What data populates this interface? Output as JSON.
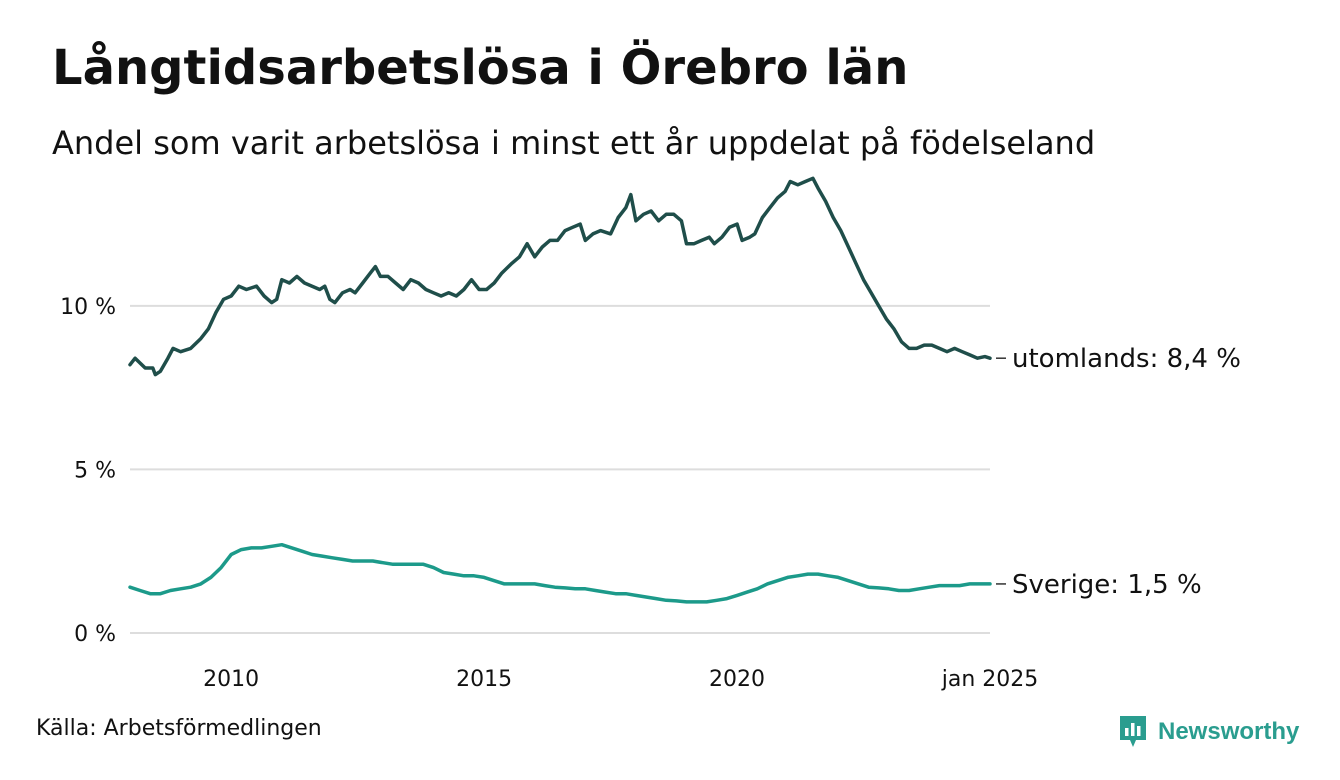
{
  "title": "Långtidsarbetslösa i Örebro län",
  "subtitle": "Andel som varit arbetslösa i minst ett år uppdelat på födelseland",
  "source": "Källa: Arbetsförmedlingen",
  "brand": "Newsworthy",
  "colors": {
    "utomlands": "#1f4e4a",
    "sverige": "#1c9a8a",
    "grid": "#dddddd",
    "brand": "#2a9d8f"
  },
  "chart_data": {
    "type": "line",
    "ylim": [
      0,
      14
    ],
    "yticks": [
      {
        "value": 0,
        "label": "0 %"
      },
      {
        "value": 5,
        "label": "5 %"
      },
      {
        "value": 10,
        "label": "10 %"
      }
    ],
    "xlim": [
      2008.0,
      2025.0
    ],
    "xticks": [
      {
        "value": 2010,
        "label": "2010"
      },
      {
        "value": 2015,
        "label": "2015"
      },
      {
        "value": 2020,
        "label": "2020"
      },
      {
        "value": 2025.0,
        "label": "jan 2025"
      }
    ],
    "grid": true,
    "series": [
      {
        "key": "utomlands",
        "end_label": "utomlands: 8,4 %",
        "color": "#1f4e4a",
        "points": [
          [
            2008.0,
            8.2
          ],
          [
            2008.1,
            8.4
          ],
          [
            2008.3,
            8.1
          ],
          [
            2008.45,
            8.1
          ],
          [
            2008.5,
            7.9
          ],
          [
            2008.6,
            8.0
          ],
          [
            2008.75,
            8.4
          ],
          [
            2008.85,
            8.7
          ],
          [
            2009.0,
            8.6
          ],
          [
            2009.2,
            8.7
          ],
          [
            2009.4,
            9.0
          ],
          [
            2009.55,
            9.3
          ],
          [
            2009.7,
            9.8
          ],
          [
            2009.85,
            10.2
          ],
          [
            2010.0,
            10.3
          ],
          [
            2010.15,
            10.6
          ],
          [
            2010.3,
            10.5
          ],
          [
            2010.5,
            10.6
          ],
          [
            2010.65,
            10.3
          ],
          [
            2010.8,
            10.1
          ],
          [
            2010.9,
            10.2
          ],
          [
            2011.0,
            10.8
          ],
          [
            2011.15,
            10.7
          ],
          [
            2011.3,
            10.9
          ],
          [
            2011.45,
            10.7
          ],
          [
            2011.6,
            10.6
          ],
          [
            2011.75,
            10.5
          ],
          [
            2011.85,
            10.6
          ],
          [
            2011.95,
            10.2
          ],
          [
            2012.05,
            10.1
          ],
          [
            2012.2,
            10.4
          ],
          [
            2012.35,
            10.5
          ],
          [
            2012.45,
            10.4
          ],
          [
            2012.6,
            10.7
          ],
          [
            2012.75,
            11.0
          ],
          [
            2012.85,
            11.2
          ],
          [
            2012.95,
            10.9
          ],
          [
            2013.1,
            10.9
          ],
          [
            2013.25,
            10.7
          ],
          [
            2013.4,
            10.5
          ],
          [
            2013.55,
            10.8
          ],
          [
            2013.7,
            10.7
          ],
          [
            2013.85,
            10.5
          ],
          [
            2014.0,
            10.4
          ],
          [
            2014.15,
            10.3
          ],
          [
            2014.3,
            10.4
          ],
          [
            2014.45,
            10.3
          ],
          [
            2014.6,
            10.5
          ],
          [
            2014.75,
            10.8
          ],
          [
            2014.9,
            10.5
          ],
          [
            2015.05,
            10.5
          ],
          [
            2015.2,
            10.7
          ],
          [
            2015.35,
            11.0
          ],
          [
            2015.55,
            11.3
          ],
          [
            2015.7,
            11.5
          ],
          [
            2015.85,
            11.9
          ],
          [
            2016.0,
            11.5
          ],
          [
            2016.15,
            11.8
          ],
          [
            2016.3,
            12.0
          ],
          [
            2016.45,
            12.0
          ],
          [
            2016.6,
            12.3
          ],
          [
            2016.75,
            12.4
          ],
          [
            2016.9,
            12.5
          ],
          [
            2017.0,
            12.0
          ],
          [
            2017.15,
            12.2
          ],
          [
            2017.3,
            12.3
          ],
          [
            2017.5,
            12.2
          ],
          [
            2017.65,
            12.7
          ],
          [
            2017.8,
            13.0
          ],
          [
            2017.9,
            13.4
          ],
          [
            2018.0,
            12.6
          ],
          [
            2018.15,
            12.8
          ],
          [
            2018.3,
            12.9
          ],
          [
            2018.45,
            12.6
          ],
          [
            2018.6,
            12.8
          ],
          [
            2018.75,
            12.8
          ],
          [
            2018.9,
            12.6
          ],
          [
            2019.0,
            11.9
          ],
          [
            2019.15,
            11.9
          ],
          [
            2019.3,
            12.0
          ],
          [
            2019.45,
            12.1
          ],
          [
            2019.55,
            11.9
          ],
          [
            2019.7,
            12.1
          ],
          [
            2019.85,
            12.4
          ],
          [
            2020.0,
            12.5
          ],
          [
            2020.1,
            12.0
          ],
          [
            2020.25,
            12.1
          ],
          [
            2020.35,
            12.2
          ],
          [
            2020.5,
            12.7
          ],
          [
            2020.65,
            13.0
          ],
          [
            2020.8,
            13.3
          ],
          [
            2020.95,
            13.5
          ],
          [
            2021.05,
            13.8
          ],
          [
            2021.2,
            13.7
          ],
          [
            2021.35,
            13.8
          ],
          [
            2021.5,
            13.9
          ],
          [
            2021.6,
            13.6
          ],
          [
            2021.75,
            13.2
          ],
          [
            2021.9,
            12.7
          ],
          [
            2022.05,
            12.3
          ],
          [
            2022.2,
            11.8
          ],
          [
            2022.35,
            11.3
          ],
          [
            2022.5,
            10.8
          ],
          [
            2022.65,
            10.4
          ],
          [
            2022.8,
            10.0
          ],
          [
            2022.95,
            9.6
          ],
          [
            2023.1,
            9.3
          ],
          [
            2023.25,
            8.9
          ],
          [
            2023.4,
            8.7
          ],
          [
            2023.55,
            8.7
          ],
          [
            2023.7,
            8.8
          ],
          [
            2023.85,
            8.8
          ],
          [
            2024.0,
            8.7
          ],
          [
            2024.15,
            8.6
          ],
          [
            2024.3,
            8.7
          ],
          [
            2024.45,
            8.6
          ],
          [
            2024.6,
            8.5
          ],
          [
            2024.75,
            8.4
          ],
          [
            2024.9,
            8.45
          ],
          [
            2025.0,
            8.4
          ]
        ]
      },
      {
        "key": "sverige",
        "end_label": "Sverige: 1,5 %",
        "color": "#1c9a8a",
        "points": [
          [
            2008.0,
            1.4
          ],
          [
            2008.2,
            1.3
          ],
          [
            2008.4,
            1.2
          ],
          [
            2008.6,
            1.2
          ],
          [
            2008.8,
            1.3
          ],
          [
            2009.0,
            1.35
          ],
          [
            2009.2,
            1.4
          ],
          [
            2009.4,
            1.5
          ],
          [
            2009.6,
            1.7
          ],
          [
            2009.8,
            2.0
          ],
          [
            2010.0,
            2.4
          ],
          [
            2010.2,
            2.55
          ],
          [
            2010.4,
            2.6
          ],
          [
            2010.6,
            2.6
          ],
          [
            2010.8,
            2.65
          ],
          [
            2011.0,
            2.7
          ],
          [
            2011.2,
            2.6
          ],
          [
            2011.4,
            2.5
          ],
          [
            2011.6,
            2.4
          ],
          [
            2011.8,
            2.35
          ],
          [
            2012.0,
            2.3
          ],
          [
            2012.2,
            2.25
          ],
          [
            2012.4,
            2.2
          ],
          [
            2012.6,
            2.2
          ],
          [
            2012.8,
            2.2
          ],
          [
            2013.0,
            2.15
          ],
          [
            2013.2,
            2.1
          ],
          [
            2013.4,
            2.1
          ],
          [
            2013.6,
            2.1
          ],
          [
            2013.8,
            2.1
          ],
          [
            2014.0,
            2.0
          ],
          [
            2014.2,
            1.85
          ],
          [
            2014.4,
            1.8
          ],
          [
            2014.6,
            1.75
          ],
          [
            2014.8,
            1.75
          ],
          [
            2015.0,
            1.7
          ],
          [
            2015.2,
            1.6
          ],
          [
            2015.4,
            1.5
          ],
          [
            2015.6,
            1.5
          ],
          [
            2015.8,
            1.5
          ],
          [
            2016.0,
            1.5
          ],
          [
            2016.2,
            1.45
          ],
          [
            2016.4,
            1.4
          ],
          [
            2016.6,
            1.38
          ],
          [
            2016.8,
            1.35
          ],
          [
            2017.0,
            1.35
          ],
          [
            2017.2,
            1.3
          ],
          [
            2017.4,
            1.25
          ],
          [
            2017.6,
            1.2
          ],
          [
            2017.8,
            1.2
          ],
          [
            2018.0,
            1.15
          ],
          [
            2018.2,
            1.1
          ],
          [
            2018.4,
            1.05
          ],
          [
            2018.6,
            1.0
          ],
          [
            2018.8,
            0.98
          ],
          [
            2019.0,
            0.95
          ],
          [
            2019.2,
            0.95
          ],
          [
            2019.4,
            0.95
          ],
          [
            2019.6,
            1.0
          ],
          [
            2019.8,
            1.05
          ],
          [
            2020.0,
            1.15
          ],
          [
            2020.2,
            1.25
          ],
          [
            2020.4,
            1.35
          ],
          [
            2020.6,
            1.5
          ],
          [
            2020.8,
            1.6
          ],
          [
            2021.0,
            1.7
          ],
          [
            2021.2,
            1.75
          ],
          [
            2021.4,
            1.8
          ],
          [
            2021.6,
            1.8
          ],
          [
            2021.8,
            1.75
          ],
          [
            2022.0,
            1.7
          ],
          [
            2022.2,
            1.6
          ],
          [
            2022.4,
            1.5
          ],
          [
            2022.6,
            1.4
          ],
          [
            2022.8,
            1.38
          ],
          [
            2023.0,
            1.35
          ],
          [
            2023.2,
            1.3
          ],
          [
            2023.4,
            1.3
          ],
          [
            2023.6,
            1.35
          ],
          [
            2023.8,
            1.4
          ],
          [
            2024.0,
            1.45
          ],
          [
            2024.2,
            1.45
          ],
          [
            2024.4,
            1.45
          ],
          [
            2024.6,
            1.5
          ],
          [
            2024.8,
            1.5
          ],
          [
            2025.0,
            1.5
          ]
        ]
      }
    ]
  }
}
